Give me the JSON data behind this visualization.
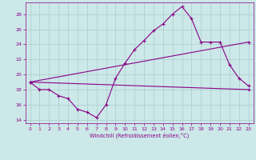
{
  "xlabel": "Windchill (Refroidissement éolien,°C)",
  "background_color": "#cce8e8",
  "grid_color": "#aacccc",
  "line_color": "#880088",
  "ylim": [
    13.5,
    29.5
  ],
  "xlim": [
    -0.5,
    23.5
  ],
  "yticks": [
    14,
    16,
    18,
    20,
    22,
    24,
    26,
    28
  ],
  "xticks": [
    0,
    1,
    2,
    3,
    4,
    5,
    6,
    7,
    8,
    9,
    10,
    11,
    12,
    13,
    14,
    15,
    16,
    17,
    18,
    19,
    20,
    21,
    22,
    23
  ],
  "line1_x": [
    0,
    1,
    2,
    3,
    4,
    5,
    6,
    7,
    8,
    9,
    10,
    11,
    12,
    13,
    14,
    15,
    16,
    17,
    18,
    19,
    20,
    21,
    22,
    23
  ],
  "line1_y": [
    19.0,
    18.0,
    18.0,
    17.2,
    16.8,
    15.4,
    15.0,
    14.3,
    16.0,
    19.5,
    21.5,
    23.3,
    24.5,
    25.8,
    26.7,
    28.0,
    29.0,
    27.4,
    24.3,
    24.3,
    24.3,
    21.3,
    19.5,
    18.5
  ],
  "line2_x": [
    0,
    23
  ],
  "line2_y": [
    19.0,
    24.3
  ],
  "line3_x": [
    0,
    23
  ],
  "line3_y": [
    19.0,
    18.0
  ]
}
